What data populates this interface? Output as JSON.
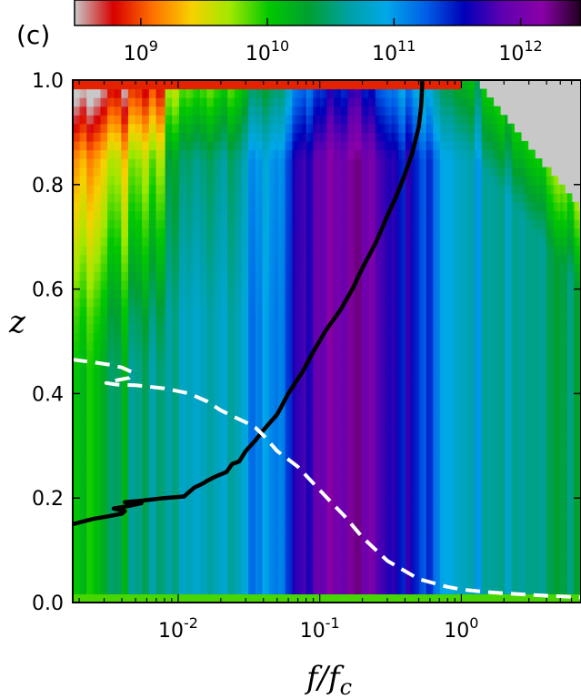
{
  "panel_label": "(c)",
  "chart_data": {
    "type": "heatmap",
    "title": "",
    "xlabel": "f/f_c",
    "ylabel": "z",
    "x_scale": "log",
    "xlim": [
      0.0018,
      7.0
    ],
    "ylim": [
      0.0,
      1.0
    ],
    "x_ticks": [
      {
        "value": 0.01,
        "base": "10",
        "exp": "-2"
      },
      {
        "value": 0.1,
        "base": "10",
        "exp": "-1"
      },
      {
        "value": 1.0,
        "base": "10",
        "exp": "0"
      }
    ],
    "y_ticks": [
      {
        "value": 0.0,
        "label": "0.0"
      },
      {
        "value": 0.2,
        "label": "0.2"
      },
      {
        "value": 0.4,
        "label": "0.4"
      },
      {
        "value": 0.6,
        "label": "0.6"
      },
      {
        "value": 0.8,
        "label": "0.8"
      },
      {
        "value": 1.0,
        "label": "1.0"
      }
    ],
    "colorbar": {
      "scale": "log",
      "range": [
        300000000.0,
        3000000000000.0
      ],
      "colormap": "nipy_spectral_r",
      "stops": [
        "#c8c8c8",
        "#d80000",
        "#ff7000",
        "#f8d000",
        "#a0e800",
        "#00c800",
        "#00a030",
        "#00a0a0",
        "#00a8e8",
        "#0060e8",
        "#0000b8",
        "#6000b0",
        "#8a00a8",
        "#200020"
      ],
      "ticks": [
        {
          "value": 1000000000.0,
          "base": "10",
          "exp": "9"
        },
        {
          "value": 10000000000.0,
          "base": "10",
          "exp": "10"
        },
        {
          "value": 100000000000.0,
          "base": "10",
          "exp": "11"
        },
        {
          "value": 1000000000000.0,
          "base": "10",
          "exp": "12"
        }
      ]
    },
    "background_color": "#c8c8c8",
    "series": [
      {
        "style": "solid",
        "color": "#000000",
        "x": [
          0.0018,
          0.0025,
          0.0032,
          0.004,
          0.0042,
          0.0035,
          0.0045,
          0.0055,
          0.0042,
          0.0055,
          0.008,
          0.011,
          0.012,
          0.013,
          0.015,
          0.016,
          0.018,
          0.022,
          0.024,
          0.027,
          0.03,
          0.035,
          0.04,
          0.05,
          0.06,
          0.075,
          0.09,
          0.11,
          0.14,
          0.17,
          0.2,
          0.25,
          0.3,
          0.35,
          0.4,
          0.45,
          0.5,
          0.52,
          0.53
        ],
        "y": [
          0.15,
          0.16,
          0.165,
          0.17,
          0.175,
          0.18,
          0.185,
          0.19,
          0.192,
          0.195,
          0.2,
          0.203,
          0.212,
          0.22,
          0.228,
          0.233,
          0.24,
          0.25,
          0.265,
          0.27,
          0.29,
          0.31,
          0.33,
          0.36,
          0.4,
          0.44,
          0.48,
          0.52,
          0.56,
          0.6,
          0.64,
          0.69,
          0.74,
          0.78,
          0.82,
          0.86,
          0.91,
          0.95,
          1.0
        ]
      },
      {
        "style": "dashed",
        "color": "#ffffff",
        "x": [
          0.0018,
          0.0025,
          0.0033,
          0.004,
          0.0048,
          0.0045,
          0.0036,
          0.0031,
          0.0037,
          0.005,
          0.008,
          0.012,
          0.016,
          0.02,
          0.025,
          0.03,
          0.035,
          0.04,
          0.05,
          0.07,
          0.1,
          0.15,
          0.2,
          0.3,
          0.5,
          0.8,
          1.0,
          1.5,
          2.5,
          4.0,
          7.0
        ],
        "y": [
          0.465,
          0.46,
          0.455,
          0.45,
          0.44,
          0.43,
          0.425,
          0.42,
          0.417,
          0.416,
          0.41,
          0.4,
          0.385,
          0.368,
          0.355,
          0.345,
          0.335,
          0.32,
          0.29,
          0.26,
          0.215,
          0.165,
          0.125,
          0.08,
          0.045,
          0.03,
          0.025,
          0.02,
          0.016,
          0.013,
          0.01
        ]
      }
    ]
  }
}
